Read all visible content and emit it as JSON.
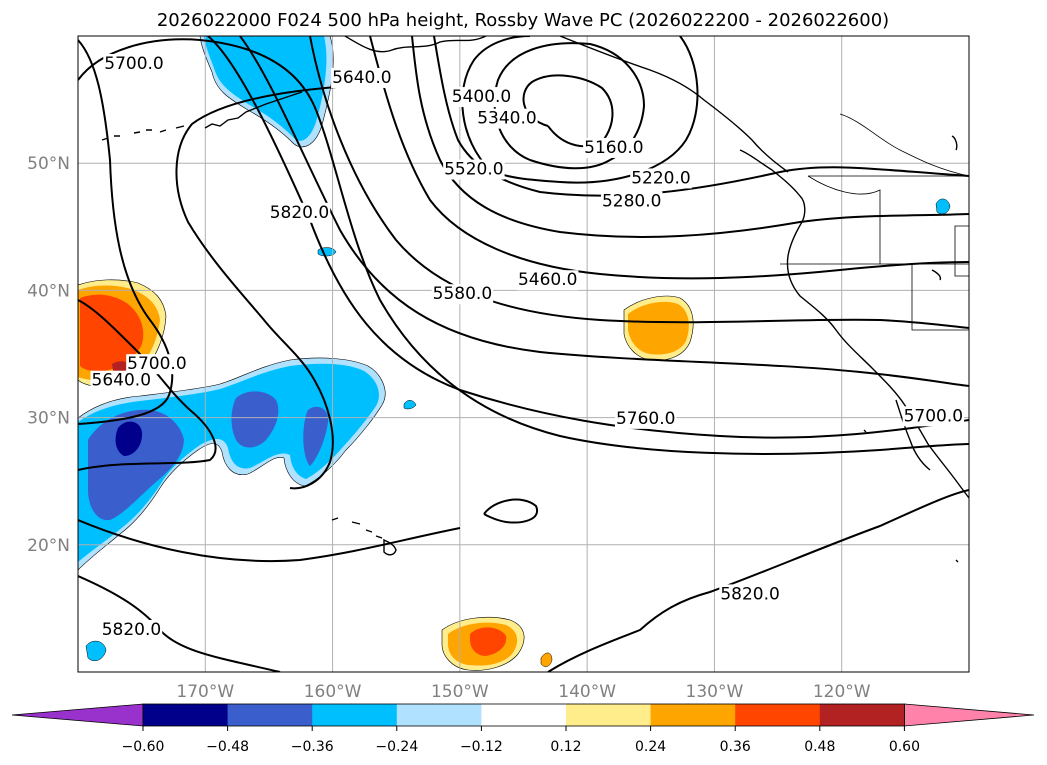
{
  "title": "2026022000 F024 500 hPa height, Rossby Wave PC (2026022200 - 2026022600)",
  "colors": {
    "neg_060": "#9932cc",
    "neg_048": "#00008b",
    "neg_036": "#3a5fcd",
    "neg_024": "#00bfff",
    "neg_012": "#b0e2ff",
    "zero": "#ffffff",
    "pos_012": "#ffec8b",
    "pos_024": "#ffa500",
    "pos_036": "#ff4500",
    "pos_048": "#b22222",
    "pos_060": "#ff82ab",
    "contour": "#000000",
    "grid": "#b0b0b0",
    "tick_label": "#808080"
  },
  "chart_data": {
    "type": "map",
    "projection": "plate-carree",
    "lon_range": [
      -180,
      -110
    ],
    "lat_range": [
      10,
      60
    ],
    "lon_ticks": [
      -170,
      -160,
      -150,
      -140,
      -130,
      -120
    ],
    "lon_tick_labels": [
      "170°W",
      "160°W",
      "150°W",
      "140°W",
      "130°W",
      "120°W"
    ],
    "lat_ticks": [
      20,
      30,
      40,
      50
    ],
    "lat_tick_labels": [
      "20°N",
      "30°N",
      "40°N",
      "50°N"
    ],
    "contour_variable": "500 hPa height",
    "contour_labels": [
      {
        "text": "5700.0",
        "lon": -175.6,
        "lat": 57.8
      },
      {
        "text": "5640.0",
        "lon": -157.7,
        "lat": 56.7
      },
      {
        "text": "5400.0",
        "lon": -148.3,
        "lat": 55.2
      },
      {
        "text": "5340.0",
        "lon": -146.3,
        "lat": 53.5
      },
      {
        "text": "5520.0",
        "lon": -148.9,
        "lat": 49.5
      },
      {
        "text": "5820.0",
        "lon": -162.6,
        "lat": 46.1
      },
      {
        "text": "5160.0",
        "lon": -137.9,
        "lat": 51.2
      },
      {
        "text": "5220.0",
        "lon": -134.2,
        "lat": 48.8
      },
      {
        "text": "5280.0",
        "lon": -136.5,
        "lat": 47.0
      },
      {
        "text": "5460.0",
        "lon": -143.1,
        "lat": 40.8
      },
      {
        "text": "5580.0",
        "lon": -149.8,
        "lat": 39.7
      },
      {
        "text": "5700.0",
        "lon": -173.8,
        "lat": 34.2
      },
      {
        "text": "5640.0",
        "lon": -176.6,
        "lat": 32.9
      },
      {
        "text": "5760.0",
        "lon": -135.4,
        "lat": 29.9
      },
      {
        "text": "5700.0",
        "lon": -112.8,
        "lat": 30.1
      },
      {
        "text": "5820.0",
        "lon": -175.8,
        "lat": 13.3
      },
      {
        "text": "5820.0",
        "lon": -127.2,
        "lat": 16.1
      }
    ],
    "shading_variable": "Rossby Wave PC",
    "colorbar": {
      "orientation": "horizontal",
      "extend": "both",
      "levels": [
        -0.6,
        -0.48,
        -0.36,
        -0.24,
        -0.12,
        0.12,
        0.24,
        0.36,
        0.48,
        0.6
      ],
      "tick_labels": [
        "−0.60",
        "−0.48",
        "−0.36",
        "−0.24",
        "−0.12",
        "0.12",
        "0.24",
        "0.36",
        "0.48",
        "0.60"
      ],
      "segment_colors": [
        "#9932cc",
        "#00008b",
        "#3a5fcd",
        "#00bfff",
        "#b0e2ff",
        "#ffffff",
        "#ffec8b",
        "#ffa500",
        "#ff4500",
        "#b22222",
        "#ff82ab"
      ]
    },
    "anomaly_regions": [
      {
        "name": "aleutian-negative",
        "sign": "negative",
        "peak_value": -0.24,
        "center_lon": -164,
        "center_lat": 55.5
      },
      {
        "name": "central-pacific-negative",
        "sign": "negative",
        "peak_value": -0.48,
        "center_lon": -171,
        "center_lat": 29
      },
      {
        "name": "dateline-positive",
        "sign": "positive",
        "peak_value": 0.48,
        "center_lon": -177,
        "center_lat": 36.5
      },
      {
        "name": "northeast-pacific-positive",
        "sign": "positive",
        "peak_value": 0.24,
        "center_lon": -134.5,
        "center_lat": 36.5
      },
      {
        "name": "tropical-positive",
        "sign": "positive",
        "peak_value": 0.36,
        "center_lon": -149,
        "center_lat": 12.5
      },
      {
        "name": "small-positive",
        "sign": "positive",
        "peak_value": 0.24,
        "center_lon": -142,
        "center_lat": 11
      },
      {
        "name": "small-negative-west",
        "sign": "negative",
        "peak_value": -0.24,
        "center_lon": -179,
        "center_lat": 11.5
      },
      {
        "name": "small-negative-east",
        "sign": "negative",
        "peak_value": -0.24,
        "center_lon": -112,
        "center_lat": 47
      },
      {
        "name": "small-negative-mid",
        "sign": "negative",
        "peak_value": -0.24,
        "center_lon": -159.5,
        "center_lat": 43
      }
    ]
  }
}
